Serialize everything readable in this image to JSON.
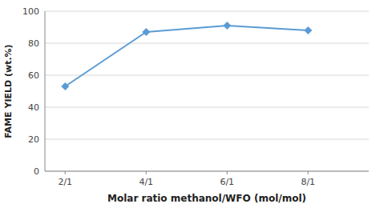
{
  "chart_data": {
    "type": "line",
    "x": [
      2,
      4,
      6,
      8
    ],
    "values": [
      53,
      87,
      91,
      88
    ],
    "xlabel": "Molar ratio methanol/WFO (mol/mol)",
    "ylabel": "FAME YIELD (wt.%)",
    "xlim": [
      1.5,
      9.5
    ],
    "xticks": [
      {
        "value": 2,
        "label": "2/1"
      },
      {
        "value": 4,
        "label": "4/1"
      },
      {
        "value": 6,
        "label": "6/1"
      },
      {
        "value": 8,
        "label": "8/1"
      }
    ],
    "ylim": [
      0,
      100
    ],
    "yticks": [
      0,
      20,
      40,
      60,
      80,
      100
    ],
    "grid": "y",
    "color": "#5b9bd5",
    "marker": "diamond"
  }
}
